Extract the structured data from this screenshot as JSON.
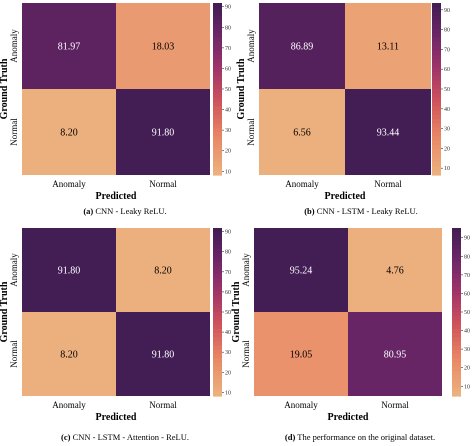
{
  "figure": {
    "captions": [
      {
        "tag": "(a)",
        "text": "CNN - Leaky ReLU."
      },
      {
        "tag": "(b)",
        "text": "CNN - LSTM - Leaky ReLU."
      },
      {
        "tag": "(c)",
        "text": "CNN - LSTM - Attention - ReLU."
      },
      {
        "tag": "(d)",
        "text": "The performance on the original dataset."
      }
    ]
  },
  "chart_data": [
    {
      "type": "heatmap",
      "xlabel": "Predicted",
      "ylabel": "Ground Truth",
      "x_categories": [
        "Anomaly",
        "Normal"
      ],
      "y_categories": [
        "Anomaly",
        "Normal"
      ],
      "values": [
        [
          81.97,
          18.03
        ],
        [
          8.2,
          91.8
        ]
      ],
      "labels": [
        [
          "81.97",
          "18.03"
        ],
        [
          "8.20",
          "91.80"
        ]
      ],
      "colorbar": {
        "min": 8.2,
        "max": 91.8,
        "ticks": [
          10,
          20,
          30,
          40,
          50,
          60,
          70,
          80,
          90
        ]
      }
    },
    {
      "type": "heatmap",
      "xlabel": "Predicted",
      "ylabel": "Ground Truth",
      "x_categories": [
        "Anomaly",
        "Normal"
      ],
      "y_categories": [
        "Anomaly",
        "Normal"
      ],
      "values": [
        [
          86.89,
          13.11
        ],
        [
          6.56,
          93.44
        ]
      ],
      "labels": [
        [
          "86.89",
          "13.11"
        ],
        [
          "6.56",
          "93.44"
        ]
      ],
      "colorbar": {
        "min": 6.56,
        "max": 93.44,
        "ticks": [
          10,
          20,
          30,
          40,
          50,
          60,
          70,
          80,
          90
        ]
      }
    },
    {
      "type": "heatmap",
      "xlabel": "Predicted",
      "ylabel": "Ground Truth",
      "x_categories": [
        "Anomaly",
        "Normal"
      ],
      "y_categories": [
        "Anomaly",
        "Normal"
      ],
      "values": [
        [
          91.8,
          8.2
        ],
        [
          8.2,
          91.8
        ]
      ],
      "labels": [
        [
          "91.80",
          "8.20"
        ],
        [
          "8.20",
          "91.80"
        ]
      ],
      "colorbar": {
        "min": 8.2,
        "max": 91.8,
        "ticks": [
          10,
          20,
          30,
          40,
          50,
          60,
          70,
          80,
          90
        ]
      }
    },
    {
      "type": "heatmap",
      "xlabel": "Predicted",
      "ylabel": "Ground Truth",
      "x_categories": [
        "Anomaly",
        "Normal"
      ],
      "y_categories": [
        "Anomaly",
        "Normal"
      ],
      "values": [
        [
          95.24,
          4.76
        ],
        [
          19.05,
          80.95
        ]
      ],
      "labels": [
        [
          "95.24",
          "4.76"
        ],
        [
          "19.05",
          "80.95"
        ]
      ],
      "colorbar": {
        "min": 4.76,
        "max": 95.24,
        "ticks": [
          10,
          20,
          30,
          40,
          50,
          60,
          70,
          80,
          90
        ]
      }
    }
  ]
}
